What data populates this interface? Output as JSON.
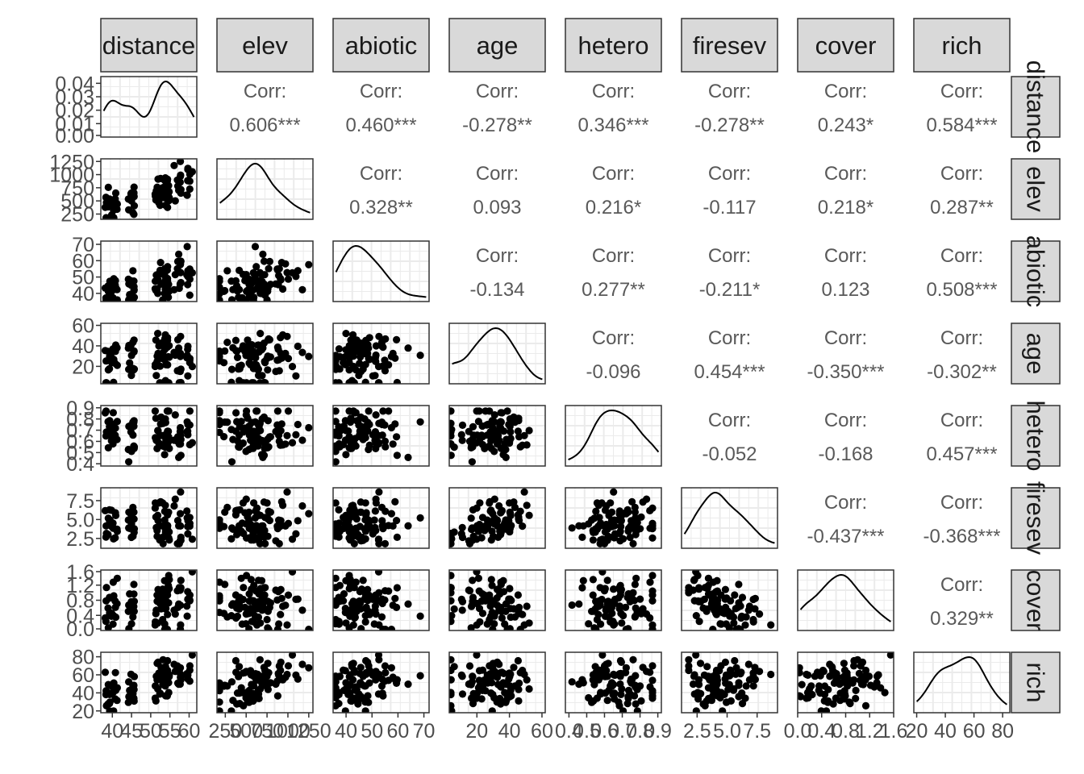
{
  "chart_data": {
    "type": "scatter",
    "variables": [
      "distance",
      "elev",
      "abiotic",
      "age",
      "hetero",
      "firesev",
      "cover",
      "rich"
    ],
    "corr_label": "Corr:",
    "correlations": [
      {
        "row": "elev",
        "col": "distance",
        "value": "0.606***"
      },
      {
        "row": "abiotic",
        "col": "distance",
        "value": "0.460***"
      },
      {
        "row": "age",
        "col": "distance",
        "value": "-0.278**"
      },
      {
        "row": "hetero",
        "col": "distance",
        "value": "0.346***"
      },
      {
        "row": "firesev",
        "col": "distance",
        "value": "-0.278**"
      },
      {
        "row": "cover",
        "col": "distance",
        "value": "0.243*"
      },
      {
        "row": "rich",
        "col": "distance",
        "value": "0.584***"
      },
      {
        "row": "abiotic",
        "col": "elev",
        "value": "0.328**"
      },
      {
        "row": "age",
        "col": "elev",
        "value": "0.093"
      },
      {
        "row": "hetero",
        "col": "elev",
        "value": "0.216*"
      },
      {
        "row": "firesev",
        "col": "elev",
        "value": "-0.117"
      },
      {
        "row": "cover",
        "col": "elev",
        "value": "0.218*"
      },
      {
        "row": "rich",
        "col": "elev",
        "value": "0.287**"
      },
      {
        "row": "age",
        "col": "abiotic",
        "value": "-0.134"
      },
      {
        "row": "hetero",
        "col": "abiotic",
        "value": "0.277**"
      },
      {
        "row": "firesev",
        "col": "abiotic",
        "value": "-0.211*"
      },
      {
        "row": "cover",
        "col": "abiotic",
        "value": "0.123"
      },
      {
        "row": "rich",
        "col": "abiotic",
        "value": "0.508***"
      },
      {
        "row": "hetero",
        "col": "age",
        "value": "-0.096"
      },
      {
        "row": "firesev",
        "col": "age",
        "value": "0.454***"
      },
      {
        "row": "cover",
        "col": "age",
        "value": "-0.350***"
      },
      {
        "row": "rich",
        "col": "age",
        "value": "-0.302**"
      },
      {
        "row": "firesev",
        "col": "hetero",
        "value": "-0.052"
      },
      {
        "row": "cover",
        "col": "hetero",
        "value": "-0.168"
      },
      {
        "row": "rich",
        "col": "hetero",
        "value": "0.457***"
      },
      {
        "row": "cover",
        "col": "firesev",
        "value": "-0.437***"
      },
      {
        "row": "rich",
        "col": "firesev",
        "value": "-0.368***"
      },
      {
        "row": "rich",
        "col": "cover",
        "value": "0.329**"
      }
    ],
    "y_axes": [
      {
        "variable": "distance",
        "ticks": [
          "0.00",
          "0.01",
          "0.02",
          "0.03",
          "0.04"
        ]
      },
      {
        "variable": "elev",
        "ticks": [
          "250",
          "500",
          "750",
          "1000",
          "1250"
        ]
      },
      {
        "variable": "abiotic",
        "ticks": [
          "40",
          "50",
          "60",
          "70"
        ]
      },
      {
        "variable": "age",
        "ticks": [
          "20",
          "40",
          "60"
        ]
      },
      {
        "variable": "hetero",
        "ticks": [
          "0.4",
          "0.5",
          "0.6",
          "0.7",
          "0.8",
          "0.9"
        ]
      },
      {
        "variable": "firesev",
        "ticks": [
          "2.5",
          "5.0",
          "7.5"
        ]
      },
      {
        "variable": "cover",
        "ticks": [
          "0.0",
          "0.4",
          "0.8",
          "1.2",
          "1.6"
        ]
      },
      {
        "variable": "rich",
        "ticks": [
          "20",
          "40",
          "60",
          "80"
        ]
      }
    ],
    "x_axes": [
      {
        "variable": "distance",
        "ticks": [
          "40",
          "45",
          "50",
          "55",
          "60"
        ]
      },
      {
        "variable": "elev",
        "ticks": [
          "250",
          "500",
          "750",
          "1000",
          "1250"
        ]
      },
      {
        "variable": "abiotic",
        "ticks": [
          "40",
          "50",
          "60",
          "70"
        ]
      },
      {
        "variable": "age",
        "ticks": [
          "20",
          "40",
          "60"
        ]
      },
      {
        "variable": "hetero",
        "ticks": [
          "0.4",
          "0.5",
          "0.6",
          "0.7",
          "0.8",
          "0.9"
        ]
      },
      {
        "variable": "firesev",
        "ticks": [
          "2.5",
          "5.0",
          "7.5"
        ]
      },
      {
        "variable": "cover",
        "ticks": [
          "0.0",
          "0.4",
          "0.8",
          "1.2",
          "1.6"
        ]
      },
      {
        "variable": "rich",
        "ticks": [
          "20",
          "40",
          "60",
          "80"
        ]
      }
    ],
    "grid": true,
    "point_color": "#000000",
    "strip_fill": "#d9d9d9"
  }
}
